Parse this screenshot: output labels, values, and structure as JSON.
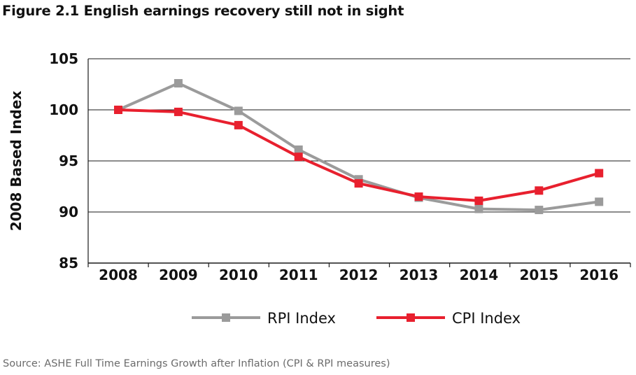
{
  "figure_title": "Figure 2.1 English earnings recovery still not in sight",
  "source_note": "Source: ASHE Full Time Earnings Growth after Inflation (CPI & RPI measures)",
  "chart_data": {
    "type": "line",
    "title": "Figure 2.1 English earnings recovery still not in sight",
    "xlabel": "",
    "ylabel": "2008 Based Index",
    "categories": [
      "2008",
      "2009",
      "2010",
      "2011",
      "2012",
      "2013",
      "2014",
      "2015",
      "2016"
    ],
    "ylim": [
      85,
      105
    ],
    "yticks": [
      85,
      90,
      95,
      100,
      105
    ],
    "ytick_labels": [
      "85",
      "90",
      "95",
      "100",
      "105"
    ],
    "grid": true,
    "legend_position": "bottom-center",
    "series": [
      {
        "name": "RPI Index",
        "color": "#9b9b9b",
        "marker": "square",
        "values": [
          100.0,
          102.6,
          99.9,
          96.1,
          93.2,
          91.4,
          90.3,
          90.2,
          91.0
        ]
      },
      {
        "name": "CPI Index",
        "color": "#e8202e",
        "marker": "square",
        "values": [
          100.0,
          99.8,
          98.5,
          95.4,
          92.8,
          91.5,
          91.1,
          92.1,
          93.8
        ]
      }
    ]
  }
}
